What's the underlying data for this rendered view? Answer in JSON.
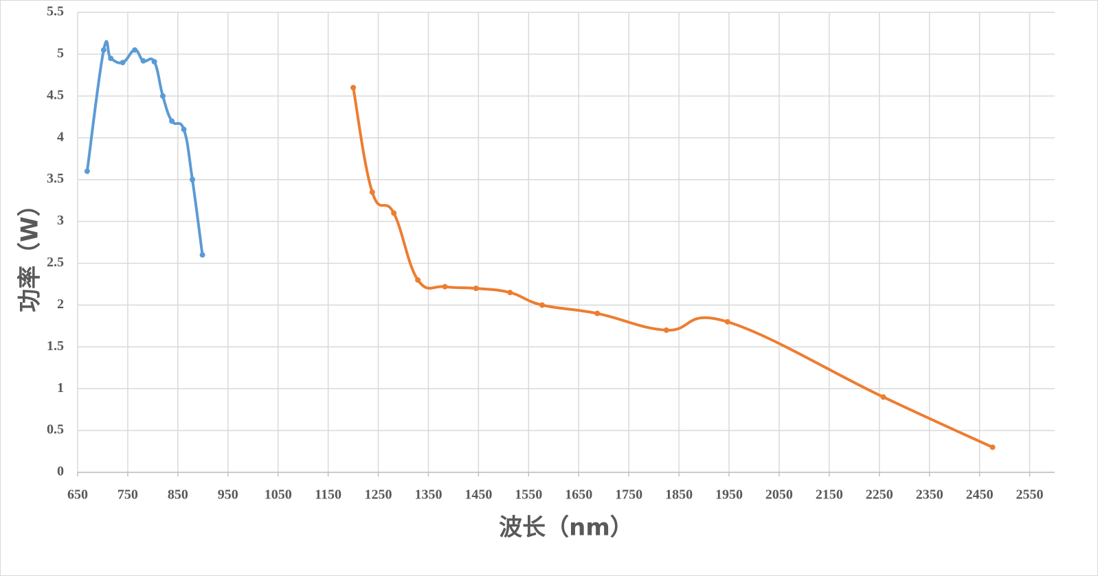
{
  "chart_data": {
    "type": "line",
    "x_label": "波长（nm）",
    "y_label": "功率（W）",
    "xlim": [
      650,
      2600
    ],
    "xticks": [
      650,
      750,
      850,
      950,
      1050,
      1150,
      1250,
      1350,
      1450,
      1550,
      1650,
      1750,
      1850,
      1950,
      2050,
      2150,
      2250,
      2350,
      2450,
      2550
    ],
    "ylim": [
      0,
      5.5
    ],
    "yticks": [
      0,
      0.5,
      1,
      1.5,
      2,
      2.5,
      3,
      3.5,
      4,
      4.5,
      5,
      5.5
    ],
    "grid": true,
    "series": [
      {
        "color": "#5b9bd5",
        "x": [
          669,
          702,
          716,
          740,
          764,
          781,
          803,
          820,
          838,
          862,
          879,
          899
        ],
        "values": [
          3.6,
          5.05,
          4.95,
          4.9,
          5.05,
          4.92,
          4.91,
          4.5,
          4.2,
          4.1,
          3.5,
          2.6
        ]
      },
      {
        "color": "#ed7d31",
        "x": [
          1200,
          1238,
          1281,
          1329,
          1383,
          1445,
          1513,
          1577,
          1687,
          1825,
          1947,
          2258,
          2476
        ],
        "values": [
          4.6,
          3.35,
          3.1,
          2.3,
          2.22,
          2.2,
          2.15,
          2.0,
          1.9,
          1.7,
          1.8,
          0.9,
          0.3
        ]
      }
    ]
  }
}
